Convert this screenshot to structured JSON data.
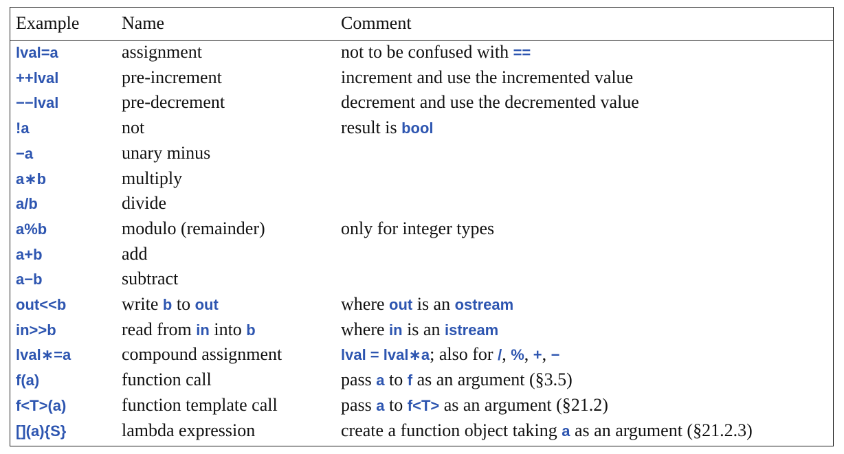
{
  "colors": {
    "code": "#2d55b0",
    "text": "#111111",
    "rule": "#1a1a1a"
  },
  "header": {
    "example": "Example",
    "name": "Name",
    "comment": "Comment"
  },
  "rows": [
    {
      "example": "lval=a",
      "name": [
        {
          "t": "assignment"
        }
      ],
      "comment": [
        {
          "t": "not to be confused with "
        },
        {
          "c": "=="
        }
      ]
    },
    {
      "example": "++lval",
      "name": [
        {
          "t": "pre-increment"
        }
      ],
      "comment": [
        {
          "t": "increment and use the incremented value"
        }
      ]
    },
    {
      "example": "−−lval",
      "name": [
        {
          "t": "pre-decrement"
        }
      ],
      "comment": [
        {
          "t": "decrement and use the decremented value"
        }
      ]
    },
    {
      "example": "!a",
      "name": [
        {
          "t": "not"
        }
      ],
      "comment": [
        {
          "t": "result is "
        },
        {
          "c": "bool"
        }
      ]
    },
    {
      "example": "−a",
      "name": [
        {
          "t": "unary minus"
        }
      ],
      "comment": []
    },
    {
      "example": "a∗b",
      "name": [
        {
          "t": "multiply"
        }
      ],
      "comment": []
    },
    {
      "example": "a/b",
      "name": [
        {
          "t": "divide"
        }
      ],
      "comment": []
    },
    {
      "example": "a%b",
      "name": [
        {
          "t": "modulo (remainder)"
        }
      ],
      "comment": [
        {
          "t": "only for integer types"
        }
      ]
    },
    {
      "example": "a+b",
      "name": [
        {
          "t": "add"
        }
      ],
      "comment": []
    },
    {
      "example": "a−b",
      "name": [
        {
          "t": "subtract"
        }
      ],
      "comment": []
    },
    {
      "example": "out<<b",
      "name": [
        {
          "t": "write "
        },
        {
          "c": "b"
        },
        {
          "t": " to "
        },
        {
          "c": "out"
        }
      ],
      "comment": [
        {
          "t": "where "
        },
        {
          "c": "out"
        },
        {
          "t": " is an "
        },
        {
          "c": "ostream"
        }
      ]
    },
    {
      "example": "in>>b",
      "name": [
        {
          "t": "read from "
        },
        {
          "c": "in"
        },
        {
          "t": " into "
        },
        {
          "c": "b"
        }
      ],
      "comment": [
        {
          "t": "where "
        },
        {
          "c": "in"
        },
        {
          "t": " is an "
        },
        {
          "c": "istream"
        }
      ]
    },
    {
      "example": "lval∗=a",
      "name": [
        {
          "t": "compound assignment"
        }
      ],
      "comment": [
        {
          "c": "lval = lval∗a"
        },
        {
          "t": "; also for "
        },
        {
          "c": "/"
        },
        {
          "t": ", "
        },
        {
          "c": "%"
        },
        {
          "t": ", "
        },
        {
          "c": "+"
        },
        {
          "t": ", "
        },
        {
          "c": "−"
        }
      ]
    },
    {
      "example": "f(a)",
      "name": [
        {
          "t": "function call"
        }
      ],
      "comment": [
        {
          "t": "pass "
        },
        {
          "c": "a"
        },
        {
          "t": " to "
        },
        {
          "c": "f"
        },
        {
          "t": " as an argument (§3.5)"
        }
      ]
    },
    {
      "example": "f<T>(a)",
      "name": [
        {
          "t": "function template call"
        }
      ],
      "comment": [
        {
          "t": "pass "
        },
        {
          "c": "a"
        },
        {
          "t": " to "
        },
        {
          "c": "f<T>"
        },
        {
          "t": " as an argument (§21.2)"
        }
      ]
    },
    {
      "example": "[](a){S}",
      "name": [
        {
          "t": "lambda expression"
        }
      ],
      "comment": [
        {
          "t": "create a function object taking "
        },
        {
          "c": "a"
        },
        {
          "t": " as an argument (§21.2.3)"
        }
      ]
    }
  ]
}
